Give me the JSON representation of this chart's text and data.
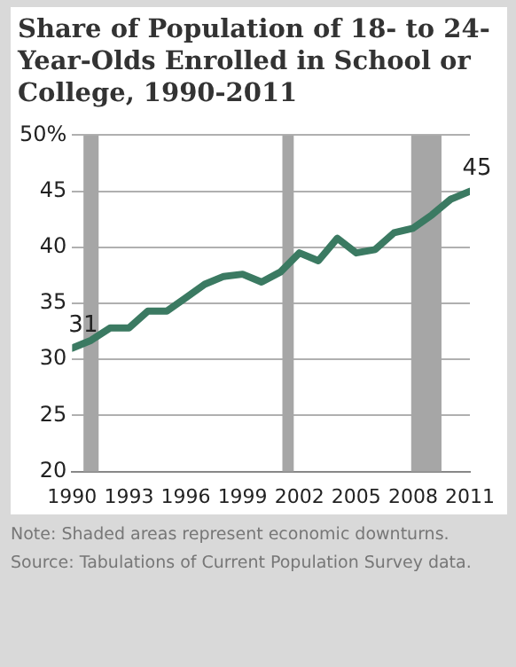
{
  "chart_data": {
    "type": "line",
    "title": "Share of Population of 18- to 24-Year-Olds Enrolled in School or College, 1990-2011",
    "x": [
      1990,
      1991,
      1992,
      1993,
      1994,
      1995,
      1996,
      1997,
      1998,
      1999,
      2000,
      2001,
      2002,
      2003,
      2004,
      2005,
      2006,
      2007,
      2008,
      2009,
      2010,
      2011
    ],
    "series": [
      {
        "color": "#3b7a62",
        "values": [
          31,
          31.7,
          32.8,
          32.8,
          34.3,
          34.3,
          35.5,
          36.7,
          37.4,
          37.6,
          36.9,
          37.8,
          39.5,
          38.8,
          40.8,
          39.5,
          39.8,
          41.3,
          41.7,
          42.9,
          44.3,
          45
        ],
        "value_labels": [
          "31",
          null,
          null,
          null,
          null,
          null,
          null,
          null,
          null,
          null,
          null,
          null,
          null,
          null,
          null,
          null,
          null,
          null,
          null,
          null,
          null,
          "45"
        ]
      }
    ],
    "xlim": [
      1990,
      2011
    ],
    "xticks": [
      1990,
      1993,
      1996,
      1999,
      2002,
      2005,
      2008,
      2011
    ],
    "ylim": [
      20,
      50
    ],
    "yticks": [
      20,
      25,
      30,
      35,
      40,
      45,
      {
        "value": 50,
        "label": "50%"
      }
    ],
    "grid": "y",
    "legend": false,
    "marker": "none",
    "line_style": "solid",
    "bands": [
      {
        "axis": "x",
        "from": 1990.6,
        "to": 1991.4,
        "color": "#a6a6a6"
      },
      {
        "axis": "x",
        "from": 2001.1,
        "to": 2001.7,
        "color": "#a6a6a6"
      },
      {
        "axis": "x",
        "from": 2007.9,
        "to": 2009.5,
        "color": "#a6a6a6"
      }
    ],
    "annotations": [
      "Note: Shaded areas represent economic downturns.",
      "Source: Tabulations of Current Population Survey data."
    ]
  }
}
